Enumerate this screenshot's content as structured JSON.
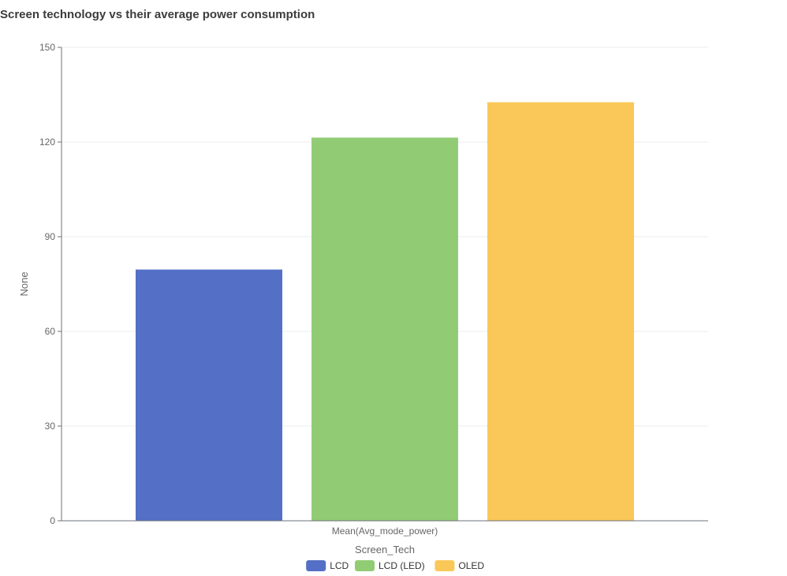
{
  "chart_data": {
    "type": "bar",
    "title": "Screen technology vs their average power consumption",
    "xlabel": "Screen_Tech",
    "ylabel": "None",
    "categories": [
      "Mean(Avg_mode_power)"
    ],
    "series": [
      {
        "name": "LCD",
        "values": [
          79.6
        ],
        "color": "#5470c6"
      },
      {
        "name": "LCD (LED)",
        "values": [
          121.4
        ],
        "color": "#91cc75"
      },
      {
        "name": "OLED",
        "values": [
          132.6
        ],
        "color": "#fac858"
      }
    ],
    "ylim": [
      0,
      150
    ],
    "yticks": [
      0,
      30,
      60,
      90,
      120,
      150
    ],
    "grid": true,
    "legend_position": "bottom"
  }
}
